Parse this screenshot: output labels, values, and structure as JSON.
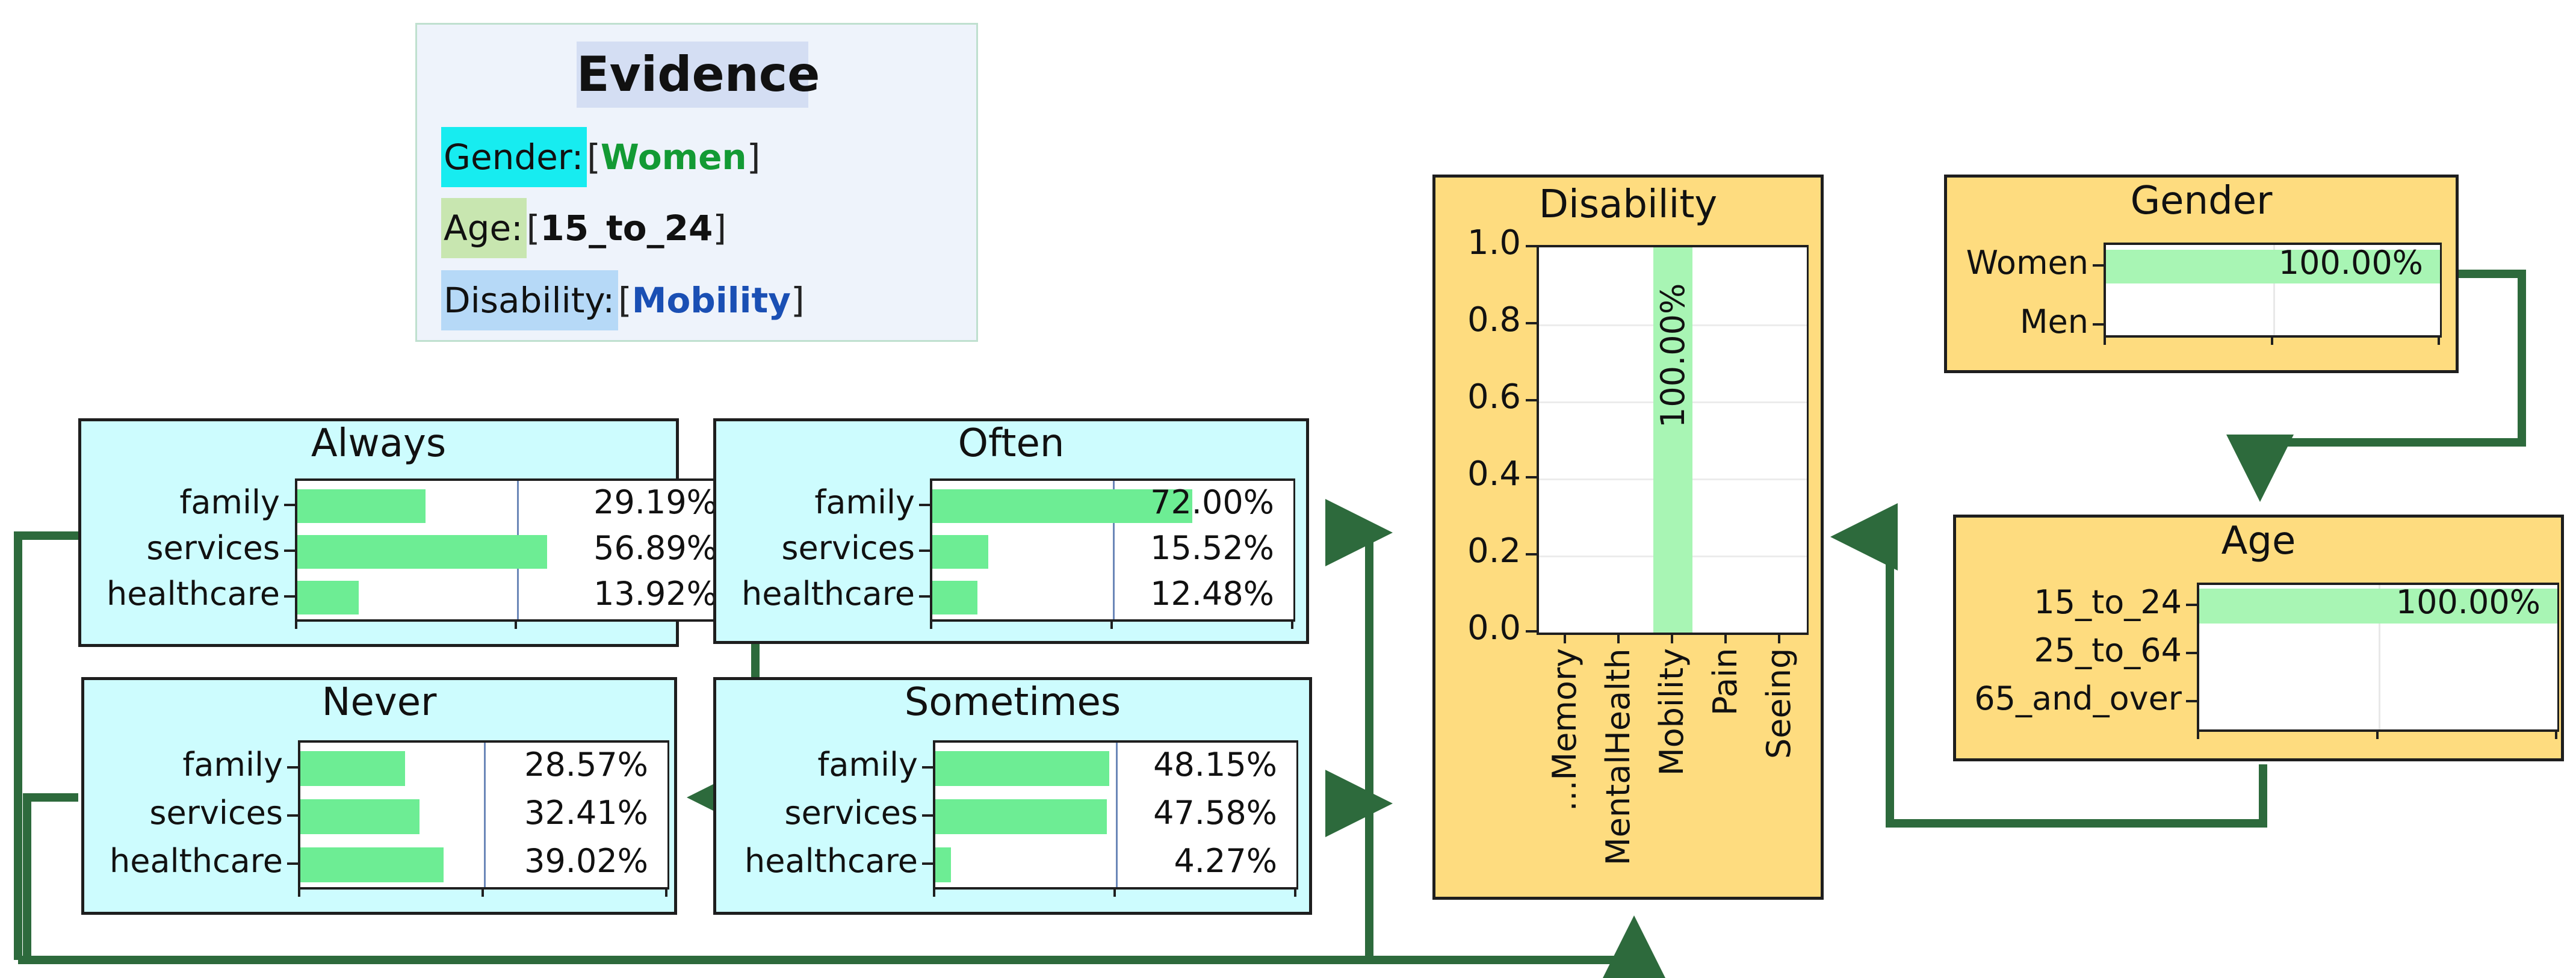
{
  "evidence": {
    "title": "Evidence",
    "items": [
      {
        "key": "Gender:",
        "value": "Women",
        "key_bg": "#17ecf0",
        "value_color": "#139a34"
      },
      {
        "key": "Age:",
        "value": "15_to_24",
        "key_bg": "#c8e6b0",
        "value_color": "#111111"
      },
      {
        "key": "Disability:",
        "value": "Mobility",
        "key_bg": "#b6d9f7",
        "value_color": "#1a4fb4"
      }
    ]
  },
  "nodes": {
    "always": {
      "title": "Always",
      "rows": [
        {
          "label": "family",
          "value": 29.19,
          "text": "29.19%"
        },
        {
          "label": "services",
          "value": 56.89,
          "text": "56.89%"
        },
        {
          "label": "healthcare",
          "value": 13.92,
          "text": "13.92%"
        }
      ]
    },
    "often": {
      "title": "Often",
      "rows": [
        {
          "label": "family",
          "value": 72.0,
          "text": "72.00%"
        },
        {
          "label": "services",
          "value": 15.52,
          "text": "15.52%"
        },
        {
          "label": "healthcare",
          "value": 12.48,
          "text": "12.48%"
        }
      ]
    },
    "never": {
      "title": "Never",
      "rows": [
        {
          "label": "family",
          "value": 28.57,
          "text": "28.57%"
        },
        {
          "label": "services",
          "value": 32.41,
          "text": "32.41%"
        },
        {
          "label": "healthcare",
          "value": 39.02,
          "text": "39.02%"
        }
      ]
    },
    "sometimes": {
      "title": "Sometimes",
      "rows": [
        {
          "label": "family",
          "value": 48.15,
          "text": "48.15%"
        },
        {
          "label": "services",
          "value": 47.58,
          "text": "47.58%"
        },
        {
          "label": "healthcare",
          "value": 4.27,
          "text": "4.27%"
        }
      ]
    },
    "gender": {
      "title": "Gender",
      "rows": [
        {
          "label": "Women",
          "value": 100.0,
          "text": "100.00%"
        },
        {
          "label": "Men",
          "value": 0,
          "text": ""
        }
      ]
    },
    "age": {
      "title": "Age",
      "rows": [
        {
          "label": "15_to_24",
          "value": 100.0,
          "text": "100.00%"
        },
        {
          "label": "25_to_64",
          "value": 0,
          "text": ""
        },
        {
          "label": "65_and_over",
          "value": 0,
          "text": ""
        }
      ]
    }
  },
  "chart_data": {
    "type": "bar",
    "title": "Disability",
    "categories": [
      "...Memory",
      "MentalHealth",
      "Mobility",
      "Pain",
      "Seeing"
    ],
    "values": [
      0,
      0,
      1.0,
      0,
      0
    ],
    "bar_label": "100.00%",
    "yticks": [
      "0.0",
      "0.2",
      "0.4",
      "0.6",
      "0.8",
      "1.0"
    ],
    "ylim": [
      0,
      1.0
    ]
  },
  "colors": {
    "cyan_node": "#cdfcfe",
    "gold_node": "#fedc7f",
    "bar_green": "#6ded94",
    "pale_green_bar": "#a8f5b4",
    "arrow_green": "#2d6a3c"
  }
}
